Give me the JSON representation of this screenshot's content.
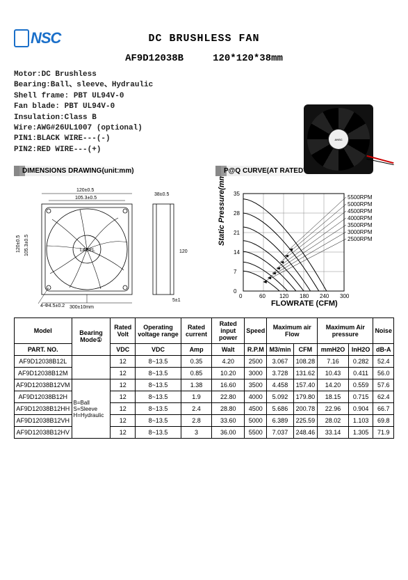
{
  "logo_text": "NSC",
  "title": "DC BRUSHLESS FAN",
  "subtitle_model": "AF9D12038B",
  "subtitle_dim": "120*120*38mm",
  "specs": [
    "Motor:DC Brushless",
    "Bearing:Ball、sleeve、Hydraulic",
    "Shell  frame: PBT UL94V-0",
    "Fan blade: PBT UL94V-0",
    "Insulation:Class B",
    "Wire:AWG#26UL1007 (optional)",
    "PIN1:BLACK WIRE---(-)",
    "PIN2:RED WIRE---(+)"
  ],
  "section_dim": "DIMENSIONS DRAWING(unit:mm)",
  "section_pq": "P@Q CURVE(AT RATEDVOLTAGE)",
  "dim_labels": {
    "w": "120±0.5",
    "wi": "105.3±0.5",
    "h": "120±0.5",
    "hi": "105.3±0.5",
    "label": "LABEL",
    "hole": "4-Φ4.5±0.2",
    "wire": "300±10mm",
    "d": "38±0.5",
    "side_h": "120",
    "five": "5±1"
  },
  "pq": {
    "ylabel": "Static Pressure(mmAq)",
    "xlabel": "FLOWRATE (CFM)",
    "xticks": [
      0,
      60,
      120,
      180,
      240,
      300
    ],
    "yticks": [
      0,
      7,
      14,
      21,
      28,
      35
    ],
    "xlim": [
      0,
      300
    ],
    "ylim": [
      0,
      35
    ],
    "grid_color": "#888",
    "series": [
      {
        "label": "5500RPM",
        "y0": 33.1,
        "x_end": 248
      },
      {
        "label": "5000RPM",
        "y0": 28.0,
        "x_end": 225
      },
      {
        "label": "4500RPM",
        "y0": 23.0,
        "x_end": 200
      },
      {
        "label": "4000RPM",
        "y0": 18.1,
        "x_end": 180
      },
      {
        "label": "3500RPM",
        "y0": 14.2,
        "x_end": 157
      },
      {
        "label": "3000RPM",
        "y0": 10.4,
        "x_end": 132
      },
      {
        "label": "2500RPM",
        "y0": 7.2,
        "x_end": 108
      }
    ],
    "curve_color": "#000"
  },
  "table": {
    "header_row1": [
      "Model",
      "Bearing Mode①",
      "Rated Volt",
      "Operating voltage range",
      "Rated current",
      "Rated input power",
      "Speed",
      "Maximum air Flow",
      "Maximum Air pressure",
      "Noise"
    ],
    "colspans1": [
      1,
      1,
      1,
      1,
      1,
      1,
      1,
      2,
      2,
      1
    ],
    "header_row2": [
      "PART. NO.",
      "",
      "VDC",
      "VDC",
      "Amp",
      "Walt",
      "R.P.M",
      "M3/min",
      "CFM",
      "mmH2O",
      "InH2O",
      "dB-A"
    ],
    "bearing_note": "B=Ball\nS=Sleeve\nH=Hydraulic",
    "rows": [
      [
        "AF9D12038B12L",
        "12",
        "8~13.5",
        "0.35",
        "4.20",
        "2500",
        "3.067",
        "108.28",
        "7.16",
        "0.282",
        "52.4"
      ],
      [
        "AF9D12038B12M",
        "12",
        "8~13.5",
        "0.85",
        "10.20",
        "3000",
        "3.728",
        "131.62",
        "10.43",
        "0.411",
        "56.0"
      ],
      [
        "AF9D12038B12VM",
        "12",
        "8~13.5",
        "1.38",
        "16.60",
        "3500",
        "4.458",
        "157.40",
        "14.20",
        "0.559",
        "57.6"
      ],
      [
        "AF9D12038B12H",
        "12",
        "8~13.5",
        "1.9",
        "22.80",
        "4000",
        "5.092",
        "179.80",
        "18.15",
        "0.715",
        "62.4"
      ],
      [
        "AF9D12038B12HH",
        "12",
        "8~13.5",
        "2.4",
        "28.80",
        "4500",
        "5.686",
        "200.78",
        "22.96",
        "0.904",
        "66.7"
      ],
      [
        "AF9D12038B12VH",
        "12",
        "8~13.5",
        "2.8",
        "33.60",
        "5000",
        "6.389",
        "225.59",
        "28.02",
        "1.103",
        "69.8"
      ],
      [
        "AF9D12038B12HV",
        "12",
        "8~13.5",
        "3",
        "36.00",
        "5500",
        "7.037",
        "248.46",
        "33.14",
        "1.305",
        "71.9"
      ]
    ]
  }
}
